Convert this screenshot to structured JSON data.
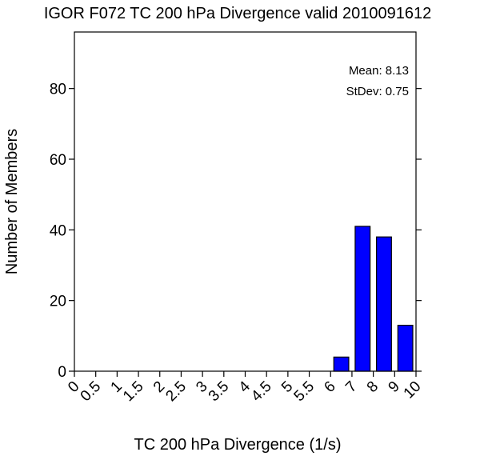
{
  "chart_data": {
    "type": "bar",
    "title": "IGOR F072 TC 200 hPa Divergence valid 2010091612",
    "xlabel": "TC 200 hPa Divergence (1/s)",
    "ylabel": "Number of Members",
    "x_ticks": [
      "0",
      "0.5",
      "1",
      "1.5",
      "2",
      "2.5",
      "3",
      "3.5",
      "4",
      "4.5",
      "5",
      "5.5",
      "6",
      "7",
      "8",
      "9",
      "10"
    ],
    "y_ticks": [
      "0",
      "20",
      "40",
      "60",
      "80"
    ],
    "ylim": [
      0,
      96
    ],
    "bars": [
      {
        "bin": "6-7",
        "value": 4
      },
      {
        "bin": "7-8",
        "value": 41
      },
      {
        "bin": "8-9",
        "value": 38
      },
      {
        "bin": "9-10",
        "value": 13
      }
    ],
    "bar_color": "#0000ff",
    "stats": {
      "mean_label": "Mean: 8.13",
      "stdev_label": "StDev: 0.75"
    },
    "grid": false,
    "legend": "none"
  }
}
